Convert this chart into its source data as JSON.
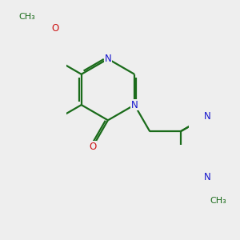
{
  "bg_color": "#eeeeee",
  "bond_color": "#1a6b1a",
  "N_color": "#1414cc",
  "O_color": "#cc1414",
  "line_width": 1.6,
  "font_size_atom": 8.5,
  "fig_width": 3.0,
  "fig_height": 3.0,
  "xlim": [
    -0.5,
    3.5
  ],
  "ylim": [
    -1.8,
    2.0
  ]
}
